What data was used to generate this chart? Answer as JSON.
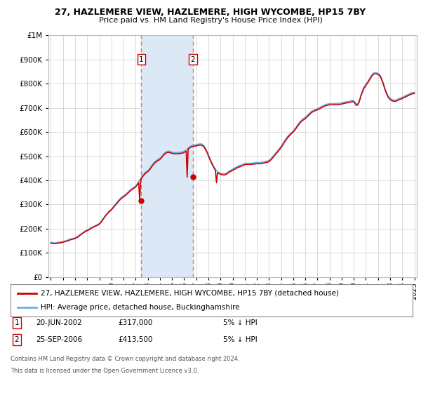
{
  "title": "27, HAZLEMERE VIEW, HAZLEMERE, HIGH WYCOMBE, HP15 7BY",
  "subtitle": "Price paid vs. HM Land Registry's House Price Index (HPI)",
  "legend_line1": "27, HAZLEMERE VIEW, HAZLEMERE, HIGH WYCOMBE, HP15 7BY (detached house)",
  "legend_line2": "HPI: Average price, detached house, Buckinghamshire",
  "purchase1_date": "20-JUN-2002",
  "purchase1_price": 317000,
  "purchase1_year": 2002.47,
  "purchase2_date": "25-SEP-2006",
  "purchase2_price": 413500,
  "purchase2_year": 2006.73,
  "footnote1": "Contains HM Land Registry data © Crown copyright and database right 2024.",
  "footnote2": "This data is licensed under the Open Government Licence v3.0.",
  "hpi_color": "#6aaee8",
  "price_color": "#cc0000",
  "marker_color": "#cc0000",
  "shade_color": "#dce8f5",
  "vline_color": "#e87070",
  "background_color": "#ffffff",
  "plot_bg_color": "#ffffff",
  "grid_color": "#cccccc",
  "ylim": [
    0,
    1000000
  ],
  "xlim_start": 1994.8,
  "xlim_end": 2025.2,
  "hpi_data_years": [
    1995.0,
    1995.08,
    1995.17,
    1995.25,
    1995.33,
    1995.42,
    1995.5,
    1995.58,
    1995.67,
    1995.75,
    1995.83,
    1995.92,
    1996.0,
    1996.08,
    1996.17,
    1996.25,
    1996.33,
    1996.42,
    1996.5,
    1996.58,
    1996.67,
    1996.75,
    1996.83,
    1996.92,
    1997.0,
    1997.08,
    1997.17,
    1997.25,
    1997.33,
    1997.42,
    1997.5,
    1997.58,
    1997.67,
    1997.75,
    1997.83,
    1997.92,
    1998.0,
    1998.08,
    1998.17,
    1998.25,
    1998.33,
    1998.42,
    1998.5,
    1998.58,
    1998.67,
    1998.75,
    1998.83,
    1998.92,
    1999.0,
    1999.08,
    1999.17,
    1999.25,
    1999.33,
    1999.42,
    1999.5,
    1999.58,
    1999.67,
    1999.75,
    1999.83,
    1999.92,
    2000.0,
    2000.08,
    2000.17,
    2000.25,
    2000.33,
    2000.42,
    2000.5,
    2000.58,
    2000.67,
    2000.75,
    2000.83,
    2000.92,
    2001.0,
    2001.08,
    2001.17,
    2001.25,
    2001.33,
    2001.42,
    2001.5,
    2001.58,
    2001.67,
    2001.75,
    2001.83,
    2001.92,
    2002.0,
    2002.08,
    2002.17,
    2002.25,
    2002.33,
    2002.42,
    2002.5,
    2002.58,
    2002.67,
    2002.75,
    2002.83,
    2002.92,
    2003.0,
    2003.08,
    2003.17,
    2003.25,
    2003.33,
    2003.42,
    2003.5,
    2003.58,
    2003.67,
    2003.75,
    2003.83,
    2003.92,
    2004.0,
    2004.08,
    2004.17,
    2004.25,
    2004.33,
    2004.42,
    2004.5,
    2004.58,
    2004.67,
    2004.75,
    2004.83,
    2004.92,
    2005.0,
    2005.08,
    2005.17,
    2005.25,
    2005.33,
    2005.42,
    2005.5,
    2005.58,
    2005.67,
    2005.75,
    2005.83,
    2005.92,
    2006.0,
    2006.08,
    2006.17,
    2006.25,
    2006.33,
    2006.42,
    2006.5,
    2006.58,
    2006.67,
    2006.75,
    2006.83,
    2006.92,
    2007.0,
    2007.08,
    2007.17,
    2007.25,
    2007.33,
    2007.42,
    2007.5,
    2007.58,
    2007.67,
    2007.75,
    2007.83,
    2007.92,
    2008.0,
    2008.08,
    2008.17,
    2008.25,
    2008.33,
    2008.42,
    2008.5,
    2008.58,
    2008.67,
    2008.75,
    2008.83,
    2008.92,
    2009.0,
    2009.08,
    2009.17,
    2009.25,
    2009.33,
    2009.42,
    2009.5,
    2009.58,
    2009.67,
    2009.75,
    2009.83,
    2009.92,
    2010.0,
    2010.08,
    2010.17,
    2010.25,
    2010.33,
    2010.42,
    2010.5,
    2010.58,
    2010.67,
    2010.75,
    2010.83,
    2010.92,
    2011.0,
    2011.08,
    2011.17,
    2011.25,
    2011.33,
    2011.42,
    2011.5,
    2011.58,
    2011.67,
    2011.75,
    2011.83,
    2011.92,
    2012.0,
    2012.08,
    2012.17,
    2012.25,
    2012.33,
    2012.42,
    2012.5,
    2012.58,
    2012.67,
    2012.75,
    2012.83,
    2012.92,
    2013.0,
    2013.08,
    2013.17,
    2013.25,
    2013.33,
    2013.42,
    2013.5,
    2013.58,
    2013.67,
    2013.75,
    2013.83,
    2013.92,
    2014.0,
    2014.08,
    2014.17,
    2014.25,
    2014.33,
    2014.42,
    2014.5,
    2014.58,
    2014.67,
    2014.75,
    2014.83,
    2014.92,
    2015.0,
    2015.08,
    2015.17,
    2015.25,
    2015.33,
    2015.42,
    2015.5,
    2015.58,
    2015.67,
    2015.75,
    2015.83,
    2015.92,
    2016.0,
    2016.08,
    2016.17,
    2016.25,
    2016.33,
    2016.42,
    2016.5,
    2016.58,
    2016.67,
    2016.75,
    2016.83,
    2016.92,
    2017.0,
    2017.08,
    2017.17,
    2017.25,
    2017.33,
    2017.42,
    2017.5,
    2017.58,
    2017.67,
    2017.75,
    2017.83,
    2017.92,
    2018.0,
    2018.08,
    2018.17,
    2018.25,
    2018.33,
    2018.42,
    2018.5,
    2018.58,
    2018.67,
    2018.75,
    2018.83,
    2018.92,
    2019.0,
    2019.08,
    2019.17,
    2019.25,
    2019.33,
    2019.42,
    2019.5,
    2019.58,
    2019.67,
    2019.75,
    2019.83,
    2019.92,
    2020.0,
    2020.08,
    2020.17,
    2020.25,
    2020.33,
    2020.42,
    2020.5,
    2020.58,
    2020.67,
    2020.75,
    2020.83,
    2020.92,
    2021.0,
    2021.08,
    2021.17,
    2021.25,
    2021.33,
    2021.42,
    2021.5,
    2021.58,
    2021.67,
    2021.75,
    2021.83,
    2021.92,
    2022.0,
    2022.08,
    2022.17,
    2022.25,
    2022.33,
    2022.42,
    2022.5,
    2022.58,
    2022.67,
    2022.75,
    2022.83,
    2022.92,
    2023.0,
    2023.08,
    2023.17,
    2023.25,
    2023.33,
    2023.42,
    2023.5,
    2023.58,
    2023.67,
    2023.75,
    2023.83,
    2023.92,
    2024.0,
    2024.08,
    2024.17,
    2024.25,
    2024.33,
    2024.42,
    2024.5,
    2024.58,
    2024.67,
    2024.75,
    2024.83,
    2024.92,
    2025.0
  ],
  "hpi_data_values": [
    143000,
    143500,
    142000,
    141500,
    141000,
    142000,
    143000,
    143500,
    144000,
    144500,
    145000,
    146000,
    147000,
    148000,
    149500,
    151000,
    152000,
    153000,
    155000,
    157000,
    158000,
    159000,
    160000,
    161000,
    163000,
    165000,
    167000,
    170000,
    173000,
    176000,
    179000,
    182000,
    185000,
    188000,
    191000,
    193000,
    195000,
    197000,
    199000,
    202000,
    205000,
    207000,
    209000,
    211000,
    213000,
    215000,
    217000,
    219000,
    222000,
    226000,
    231000,
    237000,
    243000,
    249000,
    255000,
    260000,
    265000,
    270000,
    274000,
    278000,
    282000,
    287000,
    292000,
    297000,
    302000,
    307000,
    312000,
    317000,
    322000,
    326000,
    330000,
    333000,
    336000,
    339000,
    342000,
    346000,
    350000,
    354000,
    358000,
    362000,
    365000,
    368000,
    371000,
    374000,
    377000,
    382000,
    388000,
    395000,
    402000,
    408000,
    415000,
    421000,
    426000,
    431000,
    435000,
    438000,
    441000,
    445000,
    450000,
    456000,
    462000,
    468000,
    473000,
    477000,
    481000,
    484000,
    487000,
    489000,
    492000,
    496000,
    501000,
    506000,
    511000,
    515000,
    518000,
    520000,
    521000,
    521000,
    520000,
    518000,
    517000,
    516000,
    515000,
    515000,
    515000,
    515000,
    515000,
    516000,
    516000,
    517000,
    518000,
    519000,
    521000,
    523000,
    526000,
    530000,
    534000,
    538000,
    541000,
    543000,
    545000,
    546000,
    547000,
    547000,
    548000,
    549000,
    550000,
    551000,
    551000,
    551000,
    549000,
    546000,
    541000,
    534000,
    526000,
    517000,
    507000,
    497000,
    487000,
    478000,
    469000,
    461000,
    453000,
    447000,
    441000,
    437000,
    434000,
    432000,
    430000,
    429000,
    428000,
    428000,
    428000,
    429000,
    431000,
    434000,
    437000,
    440000,
    442000,
    444000,
    447000,
    449000,
    451000,
    453000,
    456000,
    458000,
    460000,
    461000,
    463000,
    465000,
    466000,
    468000,
    470000,
    471000,
    471000,
    471000,
    471000,
    471000,
    471000,
    472000,
    472000,
    472000,
    473000,
    474000,
    474000,
    474000,
    474000,
    474000,
    475000,
    475000,
    476000,
    477000,
    478000,
    479000,
    480000,
    481000,
    483000,
    486000,
    490000,
    495000,
    500000,
    505000,
    510000,
    515000,
    520000,
    525000,
    530000,
    535000,
    541000,
    547000,
    554000,
    561000,
    567000,
    573000,
    579000,
    584000,
    589000,
    593000,
    597000,
    601000,
    605000,
    610000,
    615000,
    621000,
    627000,
    633000,
    639000,
    644000,
    648000,
    652000,
    655000,
    658000,
    661000,
    665000,
    669000,
    673000,
    677000,
    681000,
    685000,
    688000,
    690000,
    692000,
    694000,
    695000,
    697000,
    699000,
    701000,
    703000,
    706000,
    708000,
    710000,
    712000,
    714000,
    715000,
    716000,
    717000,
    717000,
    718000,
    718000,
    718000,
    718000,
    718000,
    718000,
    718000,
    718000,
    718000,
    719000,
    720000,
    721000,
    722000,
    723000,
    724000,
    725000,
    726000,
    726000,
    727000,
    728000,
    729000,
    730000,
    731000,
    730000,
    725000,
    718000,
    715000,
    718000,
    726000,
    738000,
    752000,
    765000,
    776000,
    785000,
    792000,
    798000,
    804000,
    810000,
    817000,
    824000,
    831000,
    837000,
    842000,
    845000,
    846000,
    846000,
    845000,
    843000,
    840000,
    835000,
    828000,
    818000,
    806000,
    793000,
    780000,
    768000,
    758000,
    750000,
    744000,
    740000,
    737000,
    734000,
    733000,
    732000,
    732000,
    733000,
    735000,
    737000,
    739000,
    741000,
    742000,
    744000,
    746000,
    748000,
    750000,
    752000,
    754000,
    756000,
    758000,
    760000,
    762000,
    763000,
    764000,
    765000
  ],
  "price_data_years": [
    1995.0,
    1995.08,
    1995.17,
    1995.25,
    1995.33,
    1995.42,
    1995.5,
    1995.58,
    1995.67,
    1995.75,
    1995.83,
    1995.92,
    1996.0,
    1996.08,
    1996.17,
    1996.25,
    1996.33,
    1996.42,
    1996.5,
    1996.58,
    1996.67,
    1996.75,
    1996.83,
    1996.92,
    1997.0,
    1997.08,
    1997.17,
    1997.25,
    1997.33,
    1997.42,
    1997.5,
    1997.58,
    1997.67,
    1997.75,
    1997.83,
    1997.92,
    1998.0,
    1998.08,
    1998.17,
    1998.25,
    1998.33,
    1998.42,
    1998.5,
    1998.58,
    1998.67,
    1998.75,
    1998.83,
    1998.92,
    1999.0,
    1999.08,
    1999.17,
    1999.25,
    1999.33,
    1999.42,
    1999.5,
    1999.58,
    1999.67,
    1999.75,
    1999.83,
    1999.92,
    2000.0,
    2000.08,
    2000.17,
    2000.25,
    2000.33,
    2000.42,
    2000.5,
    2000.58,
    2000.67,
    2000.75,
    2000.83,
    2000.92,
    2001.0,
    2001.08,
    2001.17,
    2001.25,
    2001.33,
    2001.42,
    2001.5,
    2001.58,
    2001.67,
    2001.75,
    2001.83,
    2001.92,
    2002.0,
    2002.08,
    2002.17,
    2002.25,
    2002.33,
    2002.42,
    2002.5,
    2002.58,
    2002.67,
    2002.75,
    2002.83,
    2002.92,
    2003.0,
    2003.08,
    2003.17,
    2003.25,
    2003.33,
    2003.42,
    2003.5,
    2003.58,
    2003.67,
    2003.75,
    2003.83,
    2003.92,
    2004.0,
    2004.08,
    2004.17,
    2004.25,
    2004.33,
    2004.42,
    2004.5,
    2004.58,
    2004.67,
    2004.75,
    2004.83,
    2004.92,
    2005.0,
    2005.08,
    2005.17,
    2005.25,
    2005.33,
    2005.42,
    2005.5,
    2005.58,
    2005.67,
    2005.75,
    2005.83,
    2005.92,
    2006.0,
    2006.08,
    2006.17,
    2006.25,
    2006.33,
    2006.42,
    2006.5,
    2006.58,
    2006.67,
    2006.75,
    2006.83,
    2006.92,
    2007.0,
    2007.08,
    2007.17,
    2007.25,
    2007.33,
    2007.42,
    2007.5,
    2007.58,
    2007.67,
    2007.75,
    2007.83,
    2007.92,
    2008.0,
    2008.08,
    2008.17,
    2008.25,
    2008.33,
    2008.42,
    2008.5,
    2008.58,
    2008.67,
    2008.75,
    2008.83,
    2008.92,
    2009.0,
    2009.08,
    2009.17,
    2009.25,
    2009.33,
    2009.42,
    2009.5,
    2009.58,
    2009.67,
    2009.75,
    2009.83,
    2009.92,
    2010.0,
    2010.08,
    2010.17,
    2010.25,
    2010.33,
    2010.42,
    2010.5,
    2010.58,
    2010.67,
    2010.75,
    2010.83,
    2010.92,
    2011.0,
    2011.08,
    2011.17,
    2011.25,
    2011.33,
    2011.42,
    2011.5,
    2011.58,
    2011.67,
    2011.75,
    2011.83,
    2011.92,
    2012.0,
    2012.08,
    2012.17,
    2012.25,
    2012.33,
    2012.42,
    2012.5,
    2012.58,
    2012.67,
    2012.75,
    2012.83,
    2012.92,
    2013.0,
    2013.08,
    2013.17,
    2013.25,
    2013.33,
    2013.42,
    2013.5,
    2013.58,
    2013.67,
    2013.75,
    2013.83,
    2013.92,
    2014.0,
    2014.08,
    2014.17,
    2014.25,
    2014.33,
    2014.42,
    2014.5,
    2014.58,
    2014.67,
    2014.75,
    2014.83,
    2014.92,
    2015.0,
    2015.08,
    2015.17,
    2015.25,
    2015.33,
    2015.42,
    2015.5,
    2015.58,
    2015.67,
    2015.75,
    2015.83,
    2015.92,
    2016.0,
    2016.08,
    2016.17,
    2016.25,
    2016.33,
    2016.42,
    2016.5,
    2016.58,
    2016.67,
    2016.75,
    2016.83,
    2016.92,
    2017.0,
    2017.08,
    2017.17,
    2017.25,
    2017.33,
    2017.42,
    2017.5,
    2017.58,
    2017.67,
    2017.75,
    2017.83,
    2017.92,
    2018.0,
    2018.08,
    2018.17,
    2018.25,
    2018.33,
    2018.42,
    2018.5,
    2018.58,
    2018.67,
    2018.75,
    2018.83,
    2018.92,
    2019.0,
    2019.08,
    2019.17,
    2019.25,
    2019.33,
    2019.42,
    2019.5,
    2019.58,
    2019.67,
    2019.75,
    2019.83,
    2019.92,
    2020.0,
    2020.08,
    2020.17,
    2020.25,
    2020.33,
    2020.42,
    2020.5,
    2020.58,
    2020.67,
    2020.75,
    2020.83,
    2020.92,
    2021.0,
    2021.08,
    2021.17,
    2021.25,
    2021.33,
    2021.42,
    2021.5,
    2021.58,
    2021.67,
    2021.75,
    2021.83,
    2021.92,
    2022.0,
    2022.08,
    2022.17,
    2022.25,
    2022.33,
    2022.42,
    2022.5,
    2022.58,
    2022.67,
    2022.75,
    2022.83,
    2022.92,
    2023.0,
    2023.08,
    2023.17,
    2023.25,
    2023.33,
    2023.42,
    2023.5,
    2023.58,
    2023.67,
    2023.75,
    2023.83,
    2023.92,
    2024.0,
    2024.08,
    2024.17,
    2024.25,
    2024.33,
    2024.42,
    2024.5,
    2024.58,
    2024.67,
    2024.75,
    2024.83,
    2024.92,
    2025.0
  ],
  "price_data_values": [
    140000,
    140500,
    139500,
    139000,
    138500,
    139000,
    140000,
    140500,
    141000,
    141500,
    142000,
    143000,
    144000,
    145000,
    146500,
    148000,
    149000,
    150000,
    152000,
    154000,
    155000,
    156000,
    157000,
    158000,
    160000,
    162000,
    164000,
    167000,
    170000,
    173000,
    176000,
    179000,
    182000,
    185000,
    188000,
    190000,
    192000,
    194000,
    196000,
    199000,
    202000,
    204000,
    206000,
    208000,
    210000,
    212000,
    214000,
    216000,
    219000,
    223000,
    228000,
    234000,
    240000,
    246000,
    252000,
    257000,
    262000,
    267000,
    271000,
    275000,
    278000,
    283000,
    288000,
    293000,
    298000,
    303000,
    308000,
    313000,
    318000,
    322000,
    326000,
    329000,
    332000,
    335000,
    338000,
    342000,
    346000,
    350000,
    354000,
    358000,
    361000,
    364000,
    367000,
    370000,
    373000,
    378000,
    384000,
    391000,
    317000,
    403000,
    410000,
    416000,
    421000,
    426000,
    430000,
    433000,
    436000,
    440000,
    445000,
    451000,
    457000,
    463000,
    468000,
    472000,
    476000,
    479000,
    482000,
    484000,
    487000,
    491000,
    496000,
    501000,
    506000,
    510000,
    513000,
    515000,
    516000,
    516000,
    515000,
    513000,
    512000,
    511000,
    510000,
    510000,
    510000,
    510000,
    510000,
    511000,
    511000,
    512000,
    513000,
    514000,
    516000,
    518000,
    521000,
    413500,
    529000,
    533000,
    536000,
    538000,
    540000,
    541000,
    542000,
    542000,
    543000,
    544000,
    545000,
    546000,
    546000,
    546000,
    544000,
    541000,
    536000,
    529000,
    521000,
    512000,
    502000,
    492000,
    482000,
    473000,
    464000,
    456000,
    448000,
    442000,
    390000,
    432000,
    429000,
    427000,
    425000,
    424000,
    423000,
    423000,
    423000,
    424000,
    426000,
    429000,
    432000,
    435000,
    437000,
    439000,
    442000,
    444000,
    446000,
    448000,
    451000,
    453000,
    455000,
    456000,
    458000,
    460000,
    461000,
    463000,
    465000,
    466000,
    466000,
    466000,
    466000,
    466000,
    466000,
    467000,
    467000,
    467000,
    468000,
    469000,
    469000,
    469000,
    469000,
    469000,
    470000,
    470000,
    471000,
    472000,
    473000,
    474000,
    475000,
    476000,
    478000,
    481000,
    485000,
    490000,
    495000,
    500000,
    505000,
    510000,
    515000,
    520000,
    525000,
    530000,
    536000,
    542000,
    549000,
    556000,
    562000,
    568000,
    574000,
    579000,
    584000,
    588000,
    592000,
    596000,
    600000,
    605000,
    610000,
    616000,
    622000,
    628000,
    634000,
    639000,
    643000,
    647000,
    650000,
    653000,
    656000,
    660000,
    664000,
    668000,
    672000,
    676000,
    680000,
    683000,
    685000,
    687000,
    689000,
    690000,
    692000,
    694000,
    696000,
    698000,
    701000,
    703000,
    705000,
    707000,
    709000,
    710000,
    711000,
    712000,
    712000,
    713000,
    713000,
    713000,
    713000,
    713000,
    713000,
    713000,
    713000,
    713000,
    714000,
    715000,
    716000,
    717000,
    718000,
    719000,
    720000,
    721000,
    721000,
    722000,
    723000,
    724000,
    725000,
    726000,
    725000,
    720000,
    713000,
    710000,
    713000,
    721000,
    733000,
    747000,
    760000,
    771000,
    780000,
    787000,
    793000,
    799000,
    805000,
    812000,
    819000,
    826000,
    832000,
    837000,
    840000,
    841000,
    841000,
    840000,
    838000,
    835000,
    830000,
    823000,
    813000,
    801000,
    788000,
    775000,
    763000,
    753000,
    745000,
    739000,
    735000,
    732000,
    729000,
    728000,
    727000,
    727000,
    728000,
    730000,
    732000,
    734000,
    736000,
    737000,
    739000,
    741000,
    743000,
    745000,
    747000,
    749000,
    751000,
    753000,
    755000,
    757000,
    758000,
    759000,
    760000
  ]
}
